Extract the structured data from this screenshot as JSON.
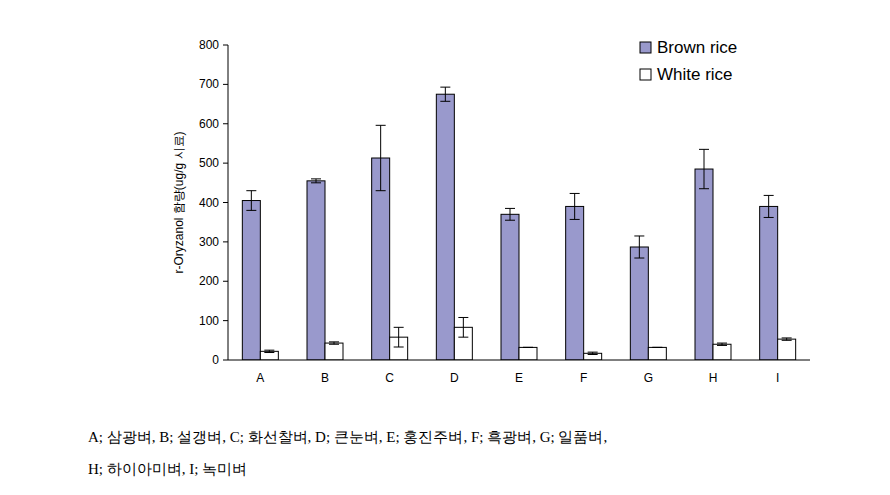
{
  "chart_data": {
    "type": "bar",
    "y_label": "r-Oryzanol 함량(ug/g 시료)",
    "categories": [
      "A",
      "B",
      "C",
      "D",
      "E",
      "F",
      "G",
      "H",
      "I"
    ],
    "series": [
      {
        "name": "Brown rice",
        "color": "#9999cc",
        "values": [
          405,
          455,
          513,
          675,
          370,
          390,
          287,
          485,
          390
        ],
        "errors": [
          25,
          5,
          83,
          18,
          15,
          33,
          28,
          50,
          28
        ]
      },
      {
        "name": "White rice",
        "color": "#ffffff",
        "values": [
          22,
          43,
          58,
          83,
          32,
          17,
          32,
          40,
          53
        ],
        "errors": [
          3,
          3,
          25,
          25,
          0,
          3,
          0,
          3,
          3
        ]
      }
    ],
    "ylim": [
      0,
      800
    ],
    "yticks": [
      0,
      100,
      200,
      300,
      400,
      500,
      600,
      700,
      800
    ],
    "grid": false,
    "legend": "upper right",
    "annotations": [
      "A; 삼광벼, B; 설갱벼, C; 화선찰벼, D; 큰눈벼, E; 홍진주벼, F; 흑광벼, G; 일품벼,",
      "H; 하이아미벼, I; 녹미벼"
    ]
  }
}
